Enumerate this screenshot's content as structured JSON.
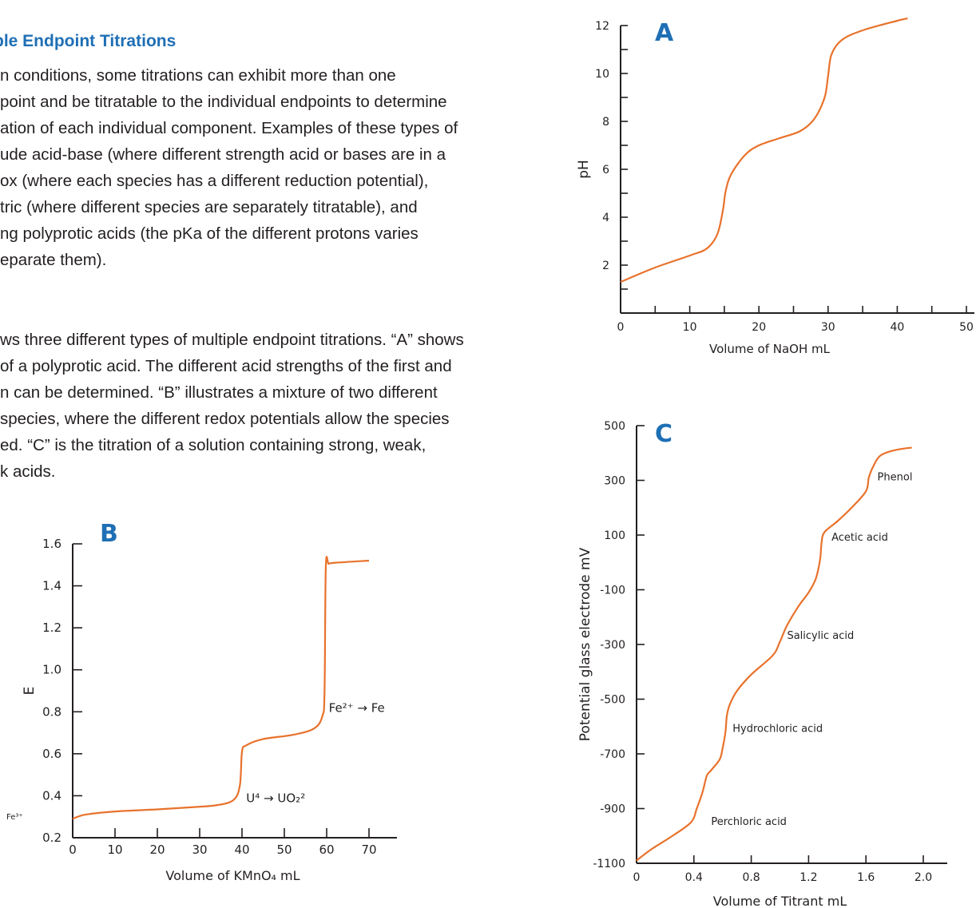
{
  "heading": "ple Endpoint Titrations",
  "paragraph1": [
    "n conditions, some titrations can exhibit more than one",
    "point and be titratable to the individual endpoints to determine",
    "ation of each individual component. Examples of these types of",
    "ude acid-base (where different strength acid or bases are in a",
    "ox (where each species has a different reduction potential),",
    "tric (where different species are separately titratable), and",
    "ng polyprotic acids (the pKa of the different protons varies",
    "eparate them)."
  ],
  "paragraph2": [
    "ws three different types of multiple endpoint titrations. “A” shows",
    "of a polyprotic acid. The different acid strengths of the first and",
    "n can be determined. “B” illustrates a mixture of two different",
    "species, where the different redox potentials allow the species",
    "ed. “C” is the titration of a solution containing strong, weak,",
    "k acids."
  ],
  "colors": {
    "curve": "#e8722c",
    "label_blue": "#1f6fb5",
    "text": "#231f20"
  },
  "chart_data": [
    {
      "type": "line",
      "panel_label": "A",
      "xlabel": "Volume of NaOH mL",
      "ylabel": "pH",
      "xlim": [
        0,
        50
      ],
      "ylim": [
        0,
        12
      ],
      "x_ticks": [
        0,
        10,
        20,
        30,
        40,
        50
      ],
      "y_ticks": [
        2,
        4,
        6,
        8,
        10,
        12
      ],
      "series": [
        {
          "x": [
            0,
            5,
            10,
            12.5,
            14,
            14.8,
            15.2,
            16,
            18,
            20,
            23,
            26,
            28,
            29.5,
            30,
            30.5,
            32,
            35,
            40,
            41.5
          ],
          "y": [
            1.3,
            1.9,
            2.4,
            2.7,
            3.3,
            4.3,
            5.1,
            5.8,
            6.6,
            7.0,
            7.3,
            7.6,
            8.1,
            9.0,
            9.9,
            10.8,
            11.4,
            11.8,
            12.2,
            12.3
          ]
        }
      ]
    },
    {
      "type": "line",
      "panel_label": "B",
      "xlabel": "Volume of KMnO₄ mL",
      "ylabel": "E",
      "xlim": [
        0,
        70
      ],
      "ylim": [
        0.2,
        1.6
      ],
      "x_ticks": [
        0,
        10,
        20,
        30,
        40,
        50,
        60,
        70
      ],
      "y_ticks": [
        0.2,
        0.4,
        0.6,
        0.8,
        1.0,
        1.2,
        1.4,
        1.6
      ],
      "series": [
        {
          "x": [
            0,
            3,
            10,
            20,
            28,
            34,
            38,
            39.5,
            40,
            41,
            45,
            52,
            57,
            59,
            59.5,
            59.8,
            60.5,
            62,
            70
          ],
          "y": [
            0.29,
            0.31,
            0.325,
            0.335,
            0.345,
            0.355,
            0.38,
            0.45,
            0.61,
            0.64,
            0.67,
            0.69,
            0.72,
            0.78,
            0.9,
            1.49,
            1.505,
            1.51,
            1.52
          ]
        }
      ],
      "annotations": [
        {
          "text": "Fe²⁺ → Fe",
          "x": 60.5,
          "y": 0.8
        },
        {
          "text": "U⁴ → UO₂²",
          "x": 41,
          "y": 0.37
        },
        {
          "text": "Fe³⁺"
        }
      ]
    },
    {
      "type": "line",
      "panel_label": "C",
      "xlabel": "Volume of Titrant mL",
      "ylabel": "Potential glass electrode mV",
      "xlim": [
        0,
        2.0
      ],
      "ylim": [
        -1100,
        500
      ],
      "x_ticks": [
        0,
        0.4,
        0.8,
        1.2,
        1.6,
        2.0
      ],
      "y_ticks": [
        -1100,
        -900,
        -700,
        -500,
        -300,
        -100,
        100,
        300,
        500
      ],
      "series": [
        {
          "x": [
            0,
            0.1,
            0.25,
            0.38,
            0.42,
            0.46,
            0.49,
            0.52,
            0.58,
            0.6,
            0.62,
            0.63,
            0.65,
            0.7,
            0.8,
            0.95,
            1.0,
            1.05,
            1.13,
            1.2,
            1.25,
            1.28,
            1.29,
            1.31,
            1.4,
            1.5,
            1.6,
            1.62,
            1.65,
            1.7,
            1.8,
            1.92
          ],
          "y": [
            -1090,
            -1050,
            -1000,
            -950,
            -900,
            -840,
            -780,
            -760,
            -720,
            -680,
            -620,
            -560,
            -520,
            -470,
            -410,
            -340,
            -290,
            -230,
            -160,
            -110,
            -60,
            10,
            70,
            110,
            150,
            200,
            260,
            310,
            350,
            390,
            410,
            420
          ]
        }
      ],
      "annotations": [
        {
          "text": "Phenol",
          "x": 1.68,
          "y": 300
        },
        {
          "text": "Acetic acid",
          "x": 1.36,
          "y": 80
        },
        {
          "text": "Salicylic acid",
          "x": 1.05,
          "y": -280
        },
        {
          "text": "Hydrochloric acid",
          "x": 0.67,
          "y": -620
        },
        {
          "text": "Perchloric acid",
          "x": 0.52,
          "y": -960
        }
      ]
    }
  ]
}
